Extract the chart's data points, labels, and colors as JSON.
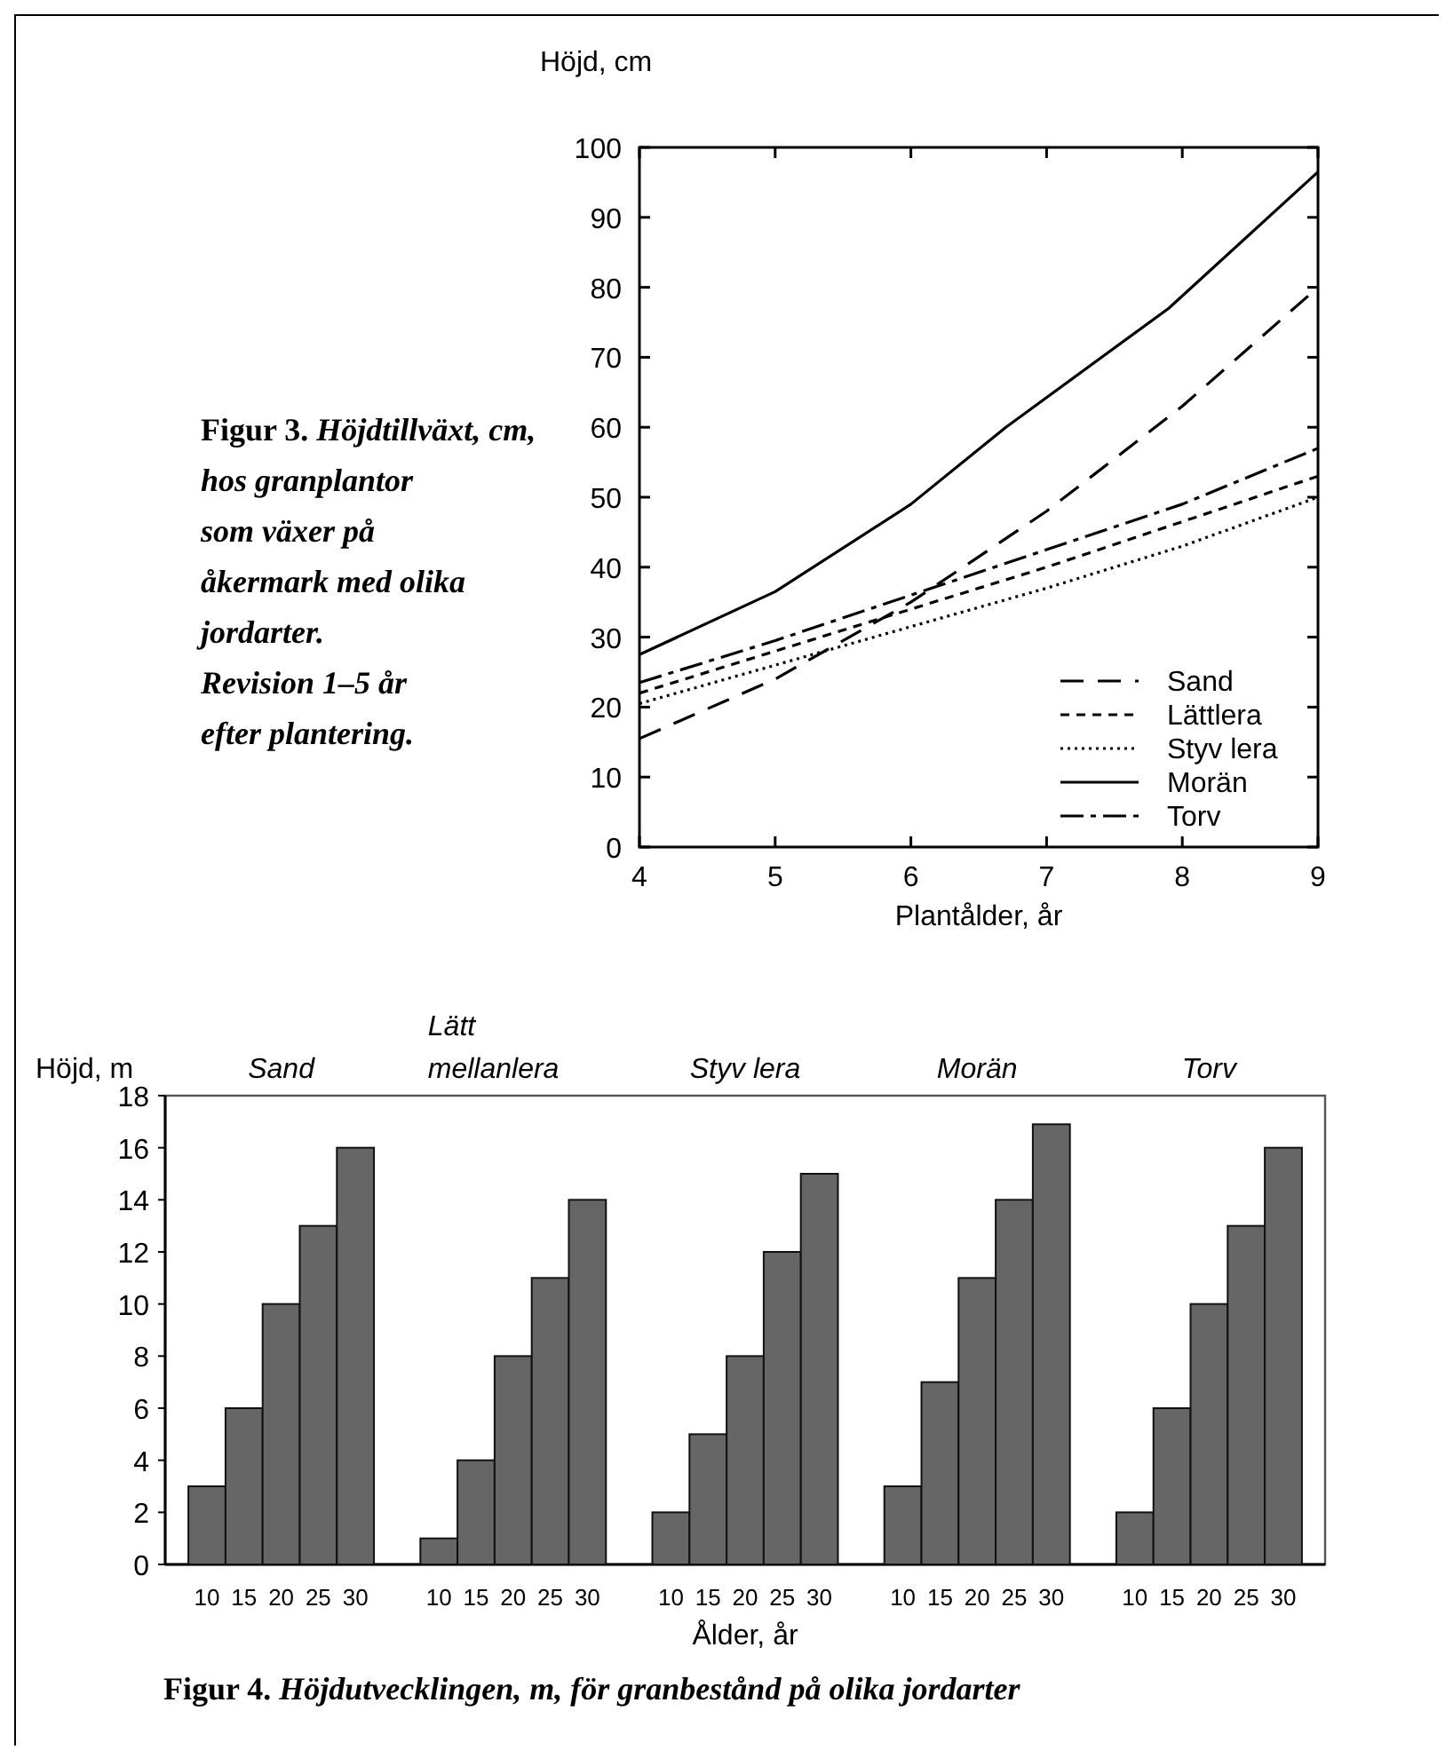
{
  "chart_data": [
    {
      "type": "line",
      "title": "Figur 3. Höjdtillväxt, cm, hos granplantor som växer på åkermark med olika jordarter. Revision 1–5 år efter plantering.",
      "xlabel": "Plantålder, år",
      "ylabel": "Höjd, cm",
      "xlim": [
        4,
        9
      ],
      "xticks": [
        4,
        5,
        6,
        7,
        8,
        9
      ],
      "ylim": [
        0,
        100
      ],
      "yticks": [
        0,
        10,
        20,
        30,
        40,
        50,
        60,
        70,
        80,
        90,
        100
      ],
      "legend": "bottom right",
      "marker": "none",
      "series": [
        {
          "name": "Sand",
          "color": "#000000",
          "line_style": "long_dashed",
          "x": [
            4,
            5,
            6,
            7,
            8,
            9
          ],
          "values": [
            15.5,
            24,
            35,
            48,
            63,
            80
          ]
        },
        {
          "name": "Lättlera",
          "color": "#000000",
          "line_style": "dashed",
          "x": [
            4,
            5,
            6,
            7,
            8,
            9
          ],
          "values": [
            22,
            28,
            34,
            40,
            46.5,
            53
          ]
        },
        {
          "name": "Styv lera",
          "color": "#000000",
          "line_style": "dotted",
          "x": [
            4,
            5,
            6,
            7,
            8,
            9
          ],
          "values": [
            20.5,
            26,
            31.5,
            37,
            43,
            50
          ]
        },
        {
          "name": "Morän",
          "color": "#000000",
          "line_style": "solid",
          "x": [
            4,
            5,
            6,
            6.7,
            7.9,
            9
          ],
          "values": [
            27.5,
            36.5,
            49,
            60,
            77,
            96.5
          ]
        },
        {
          "name": "Torv",
          "color": "#000000",
          "line_style": "dashdot",
          "x": [
            4,
            5,
            6,
            7,
            8,
            9
          ],
          "values": [
            23.5,
            29.5,
            36,
            42.5,
            49,
            57
          ]
        }
      ]
    },
    {
      "type": "bar",
      "title": "Figur 4. Höjdutvecklingen, m, för granbestånd på olika jordarter",
      "xlabel": "Ålder, år",
      "ylabel": "Höjd, m",
      "categories": [
        "Sand",
        "Lätt mellanlera",
        "Styv lera",
        "Morän",
        "Torv"
      ],
      "ylim": [
        0,
        18
      ],
      "yticks": [
        0,
        2,
        4,
        6,
        8,
        10,
        12,
        14,
        16,
        18
      ],
      "series": [
        {
          "name": "10",
          "color": "#666666",
          "values": [
            3,
            1,
            2,
            3,
            2
          ]
        },
        {
          "name": "15",
          "color": "#666666",
          "values": [
            6,
            4,
            5,
            7,
            6
          ]
        },
        {
          "name": "20",
          "color": "#666666",
          "values": [
            10,
            8,
            8,
            11,
            10
          ]
        },
        {
          "name": "25",
          "color": "#666666",
          "values": [
            13,
            11,
            12,
            14,
            13
          ]
        },
        {
          "name": "30",
          "color": "#666666",
          "values": [
            16,
            14,
            15,
            16.9,
            16
          ]
        }
      ]
    }
  ]
}
